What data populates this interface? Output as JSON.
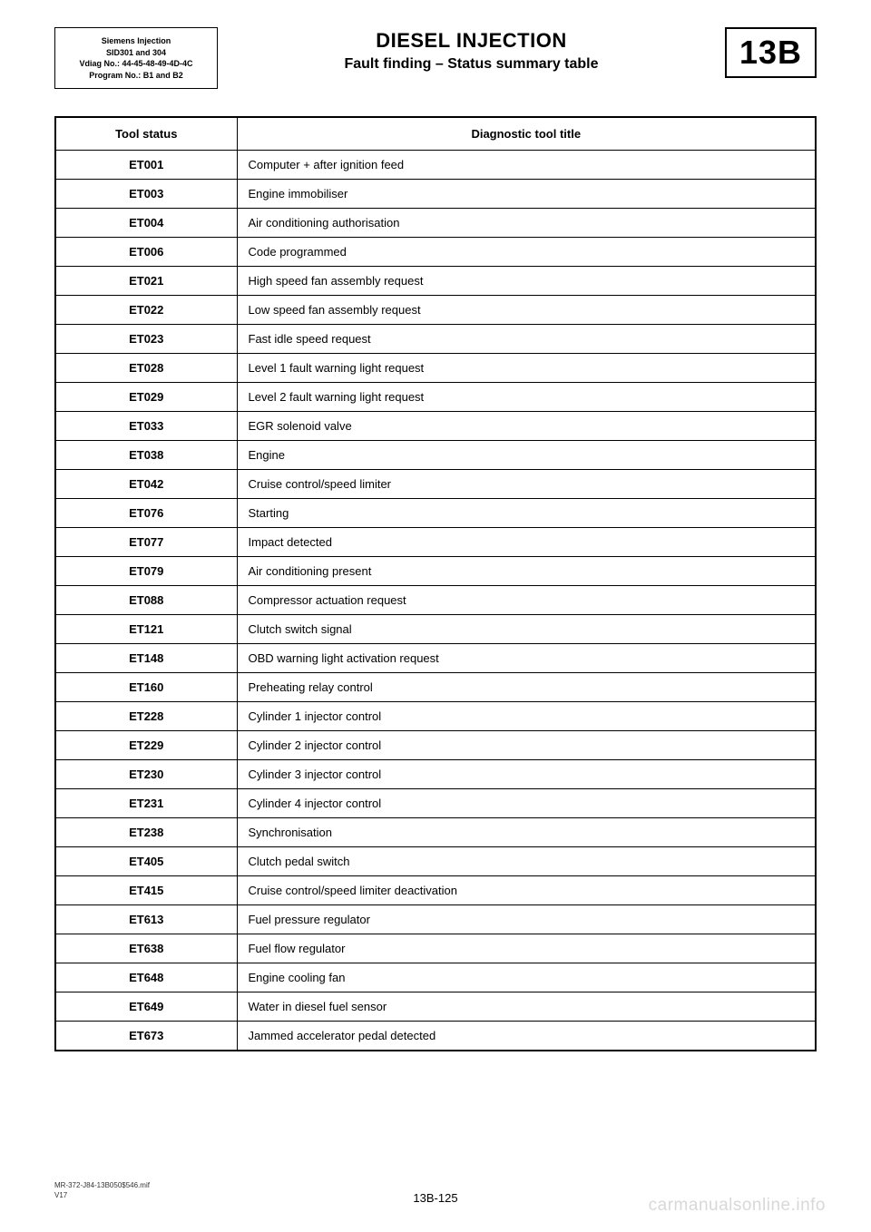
{
  "info_box": {
    "line1": "Siemens Injection",
    "line2": "SID301 and 304",
    "line3": "Vdiag No.: 44-45-48-49-4D-4C",
    "line4": "Program No.: B1 and B2"
  },
  "titles": {
    "main": "DIESEL INJECTION",
    "sub": "Fault finding – Status summary table",
    "section": "13B"
  },
  "table": {
    "headers": {
      "col1": "Tool status",
      "col2": "Diagnostic tool title"
    },
    "rows": [
      {
        "code": "ET001",
        "title": "Computer + after ignition feed"
      },
      {
        "code": "ET003",
        "title": "Engine immobiliser"
      },
      {
        "code": "ET004",
        "title": "Air conditioning authorisation"
      },
      {
        "code": "ET006",
        "title": "Code programmed"
      },
      {
        "code": "ET021",
        "title": "High speed fan assembly request"
      },
      {
        "code": "ET022",
        "title": "Low speed fan assembly request"
      },
      {
        "code": "ET023",
        "title": "Fast idle speed request"
      },
      {
        "code": "ET028",
        "title": "Level 1 fault warning light request"
      },
      {
        "code": "ET029",
        "title": "Level 2 fault warning light request"
      },
      {
        "code": "ET033",
        "title": "EGR solenoid valve"
      },
      {
        "code": "ET038",
        "title": "Engine"
      },
      {
        "code": "ET042",
        "title": "Cruise control/speed limiter"
      },
      {
        "code": "ET076",
        "title": "Starting"
      },
      {
        "code": "ET077",
        "title": "Impact detected"
      },
      {
        "code": "ET079",
        "title": "Air conditioning present"
      },
      {
        "code": "ET088",
        "title": "Compressor actuation request"
      },
      {
        "code": "ET121",
        "title": "Clutch switch signal"
      },
      {
        "code": "ET148",
        "title": "OBD warning light activation request"
      },
      {
        "code": "ET160",
        "title": "Preheating relay control"
      },
      {
        "code": "ET228",
        "title": "Cylinder 1 injector control"
      },
      {
        "code": "ET229",
        "title": "Cylinder 2 injector control"
      },
      {
        "code": "ET230",
        "title": "Cylinder 3 injector control"
      },
      {
        "code": "ET231",
        "title": "Cylinder 4 injector control"
      },
      {
        "code": "ET238",
        "title": "Synchronisation"
      },
      {
        "code": "ET405",
        "title": "Clutch pedal switch"
      },
      {
        "code": "ET415",
        "title": "Cruise control/speed limiter deactivation"
      },
      {
        "code": "ET613",
        "title": "Fuel pressure regulator"
      },
      {
        "code": "ET638",
        "title": "Fuel flow regulator"
      },
      {
        "code": "ET648",
        "title": "Engine cooling fan"
      },
      {
        "code": "ET649",
        "title": "Water in diesel fuel sensor"
      },
      {
        "code": "ET673",
        "title": "Jammed accelerator pedal detected"
      }
    ]
  },
  "footer": {
    "doc_ref": "MR-372-J84-13B050$546.mif",
    "version": "V17",
    "page": "13B-125"
  },
  "watermark": "carmanualsonline.info"
}
